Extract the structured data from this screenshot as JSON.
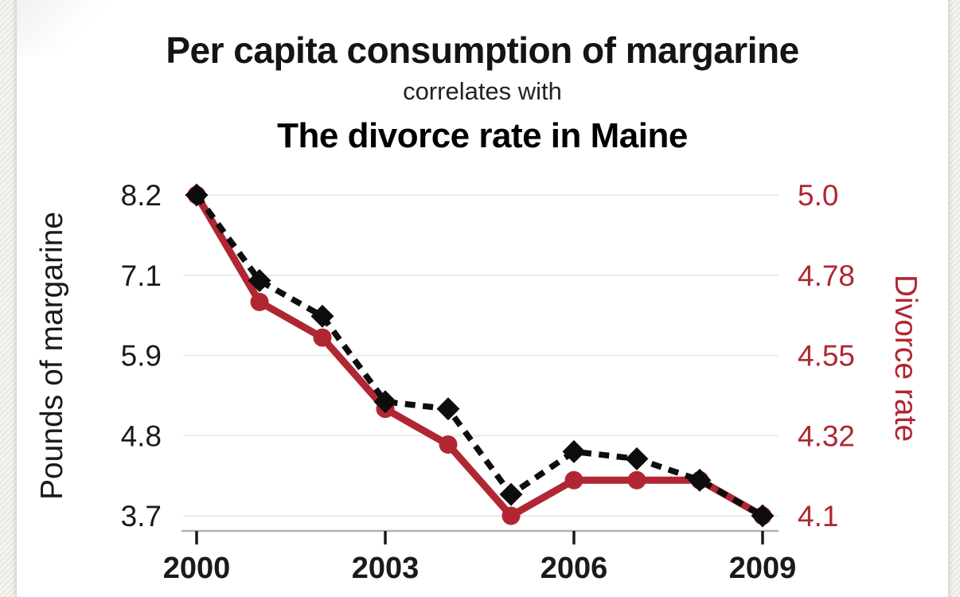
{
  "header": {
    "title": "Per capita consumption of margarine",
    "connector": "correlates with",
    "subtitle": "The divorce rate in Maine"
  },
  "colors": {
    "title_black": "#141414",
    "accent_red": "#b02733",
    "gridline": "#ececec",
    "axis_line": "#b3b3b3",
    "tick_mark": "#1a1a1a"
  },
  "chart_data": {
    "type": "line",
    "x": [
      2000,
      2001,
      2002,
      2003,
      2004,
      2005,
      2006,
      2007,
      2008,
      2009
    ],
    "x_tick_years": [
      2000,
      2003,
      2006,
      2009
    ],
    "x_tick_labels": [
      "2000",
      "2003",
      "2006",
      "2009"
    ],
    "series": [
      {
        "name": "Pounds of margarine",
        "axis": "left",
        "color": "#0d0d0d",
        "style": "dashed",
        "marker": "diamond",
        "values": [
          8.2,
          7.0,
          6.5,
          5.3,
          5.2,
          4.0,
          4.6,
          4.5,
          4.2,
          3.7
        ]
      },
      {
        "name": "Divorce rate",
        "axis": "right",
        "color": "#b02733",
        "style": "solid",
        "marker": "circle",
        "values": [
          5.0,
          4.7,
          4.6,
          4.4,
          4.3,
          4.1,
          4.2,
          4.2,
          4.2,
          4.1
        ]
      }
    ],
    "left_axis": {
      "label": "Pounds of margarine",
      "ticks": [
        "8.2",
        "7.1",
        "5.9",
        "4.8",
        "3.7"
      ],
      "min": 3.7,
      "max": 8.2,
      "color": "#1a1a1a"
    },
    "right_axis": {
      "label": "Divorce rate",
      "ticks": [
        "5.0",
        "4.78",
        "4.55",
        "4.32",
        "4.1"
      ],
      "min": 4.1,
      "max": 5.0,
      "color": "#b02733"
    },
    "grid": true,
    "legend": "none"
  }
}
